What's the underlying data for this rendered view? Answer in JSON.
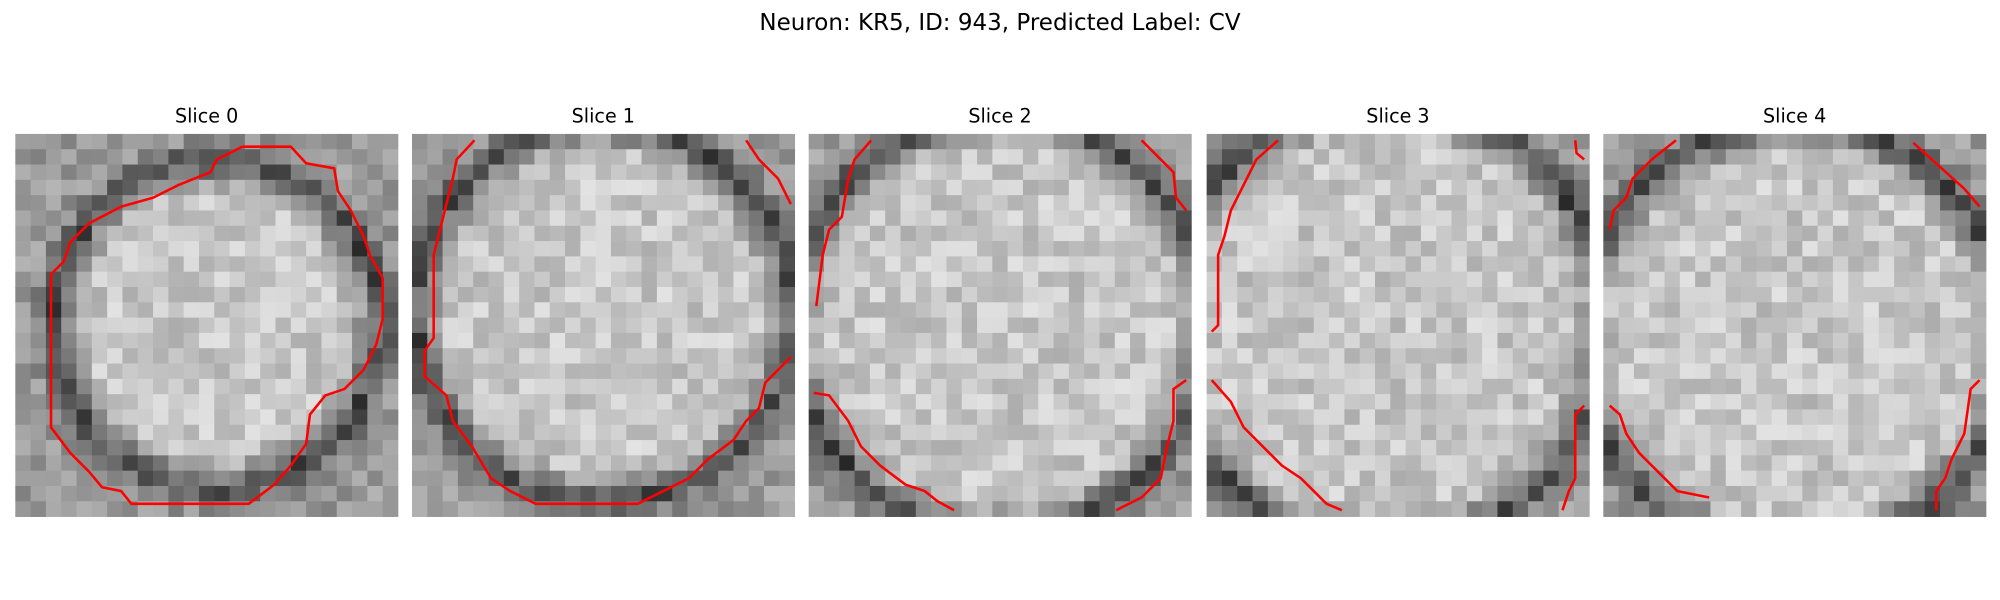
{
  "figure": {
    "title": "Neuron: KR5, ID: 943, Predicted Label: CV",
    "slices": [
      {
        "title": "Slice 0"
      },
      {
        "title": "Slice 1"
      },
      {
        "title": "Slice 2"
      },
      {
        "title": "Slice 3"
      },
      {
        "title": "Slice 4"
      }
    ]
  }
}
